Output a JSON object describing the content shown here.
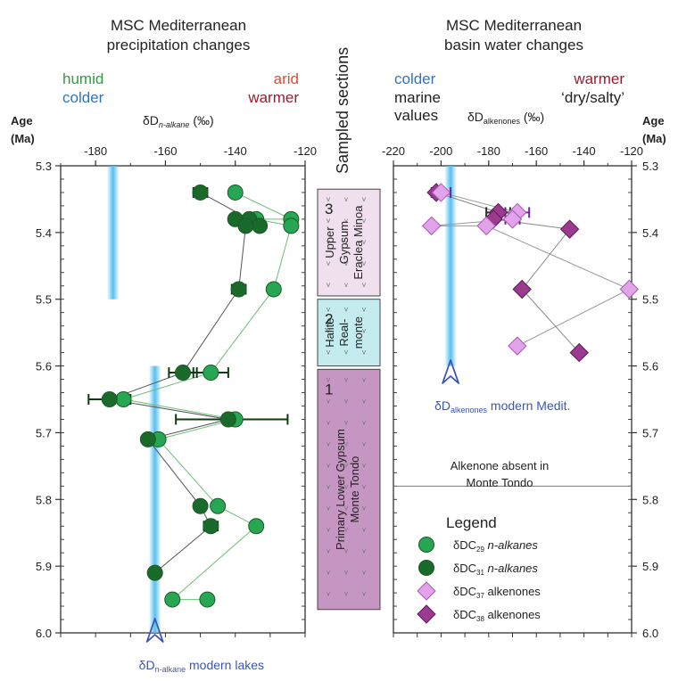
{
  "colors": {
    "humid": "#2e9e3e",
    "cold": "#2f73c4",
    "warm": "#9b1c2c",
    "arid": "#e8492e",
    "dc29": "#27a653",
    "dc31": "#1a6a2c",
    "c37": "#e2a3ea",
    "c38": "#9b3a8f",
    "errorbar_dc31": "#0f3a12",
    "errorbar_c37": "#7b1e9e",
    "band": "#55bff0",
    "arrow": "#3a57b8",
    "unit3_fill": "#f0e0ee",
    "unit2_fill": "#c4ecee",
    "unit1_fill": "#c596c2"
  },
  "left_panel": {
    "title_line1": "MSC Mediterranean",
    "title_line2": "precipitation changes",
    "humid": "humid",
    "colder": "colder",
    "arid": "arid",
    "warmer": "warmer",
    "axis_main": "δD",
    "axis_sub": "n-alkane",
    "axis_unit": " (‰)",
    "age_label": "Age",
    "age_unit": "(Ma)",
    "arrow_main": "δD",
    "arrow_sub": "n-alkane",
    "arrow_rest": " modern lakes"
  },
  "center": {
    "title": "Sampled sections",
    "unit3_number": "3",
    "unit3_label_lines": [
      "Upper",
      "Gypsum",
      "Eraclea Minoa"
    ],
    "unit2_number": "2",
    "unit2_label_lines": [
      "Halite",
      "Real-",
      "monte"
    ],
    "unit1_number": "1",
    "unit1_label_lines": [
      "Primary Lower Gypsum",
      "Monte Tondo"
    ]
  },
  "right_panel": {
    "title_line1": "MSC Mediterranean",
    "title_line2": "basin water changes",
    "colder": "colder",
    "marine_line1": "marine",
    "marine_line2": "values",
    "warmer": "warmer",
    "dry_salty": "‘dry/salty’",
    "axis_main": "δD",
    "axis_sub": "alkenones",
    "axis_unit": " (‰)",
    "age_label": "Age",
    "age_unit": "(Ma)",
    "arrow_main": "δD",
    "arrow_sub": "alkenones",
    "arrow_rest": " modern Medit.",
    "note_line1": "Alkenone absent in",
    "note_line2": "Monte Tondo",
    "legend_title": "Legend",
    "legend_items": [
      {
        "pre": "δDC",
        "sub": "29",
        "post": " n-alkanes"
      },
      {
        "pre": "δDC",
        "sub": "31",
        "post": " n-alkanes"
      },
      {
        "pre": "δDC",
        "sub": "37",
        "post": " alkenones"
      },
      {
        "pre": "δDC",
        "sub": "38",
        "post": " alkenones"
      }
    ]
  },
  "chart_data": [
    {
      "type": "scatter",
      "title": "MSC Mediterranean precipitation changes",
      "xlabel": "δD n-alkane (‰)",
      "ylabel": "Age (Ma)",
      "xlim": [
        -190,
        -120
      ],
      "ylim": [
        5.3,
        6.0
      ],
      "y_inverted": true,
      "x_ticks": [
        -180,
        -160,
        -140,
        -120
      ],
      "y_ticks": [
        5.3,
        5.4,
        5.5,
        5.6,
        5.7,
        5.8,
        5.9,
        6.0
      ],
      "reference_band": {
        "x": -175,
        "y_range": [
          5.3,
          5.5
        ]
      },
      "reference_band_modern": {
        "x": -163,
        "y_range": [
          5.6,
          6.0
        ],
        "label": "δD n-alkane modern lakes"
      },
      "series": [
        {
          "name": "δDC29 n-alkanes",
          "points": [
            {
              "x": -140,
              "y": 5.34
            },
            {
              "x": -124,
              "y": 5.38
            },
            {
              "x": -124,
              "y": 5.39
            },
            {
              "x": -134,
              "y": 5.38
            },
            {
              "x": -129,
              "y": 5.485
            },
            {
              "x": -147,
              "y": 5.61
            },
            {
              "x": -172,
              "y": 5.65
            },
            {
              "x": -140,
              "y": 5.68
            },
            {
              "x": -162,
              "y": 5.71
            },
            {
              "x": -145,
              "y": 5.81
            },
            {
              "x": -134,
              "y": 5.84
            },
            {
              "x": -158,
              "y": 5.95
            },
            {
              "x": -148,
              "y": 5.95
            }
          ],
          "errors": [
            {
              "y": 5.61,
              "x_low": -152,
              "x_high": -142
            }
          ]
        },
        {
          "name": "δDC31 n-alkanes",
          "points": [
            {
              "x": -150,
              "y": 5.34
            },
            {
              "x": -136,
              "y": 5.38
            },
            {
              "x": -140,
              "y": 5.38
            },
            {
              "x": -133,
              "y": 5.39
            },
            {
              "x": -137,
              "y": 5.39
            },
            {
              "x": -139,
              "y": 5.485
            },
            {
              "x": -155,
              "y": 5.61
            },
            {
              "x": -176,
              "y": 5.65
            },
            {
              "x": -142,
              "y": 5.68
            },
            {
              "x": -165,
              "y": 5.71
            },
            {
              "x": -150,
              "y": 5.81
            },
            {
              "x": -147,
              "y": 5.84
            },
            {
              "x": -163,
              "y": 5.91
            }
          ],
          "errors": [
            {
              "y": 5.65,
              "x_low": -182,
              "x_high": -170
            },
            {
              "y": 5.68,
              "x_low": -157,
              "x_high": -125
            },
            {
              "y": 5.61,
              "x_low": -159,
              "x_high": -151
            },
            {
              "y": 5.84,
              "x_low": -149,
              "x_high": -145
            },
            {
              "y": 5.485,
              "x_low": -141,
              "x_high": -137
            },
            {
              "y": 5.34,
              "x_low": -152,
              "x_high": -148
            }
          ]
        }
      ]
    },
    {
      "type": "scatter",
      "title": "MSC Mediterranean basin water changes",
      "xlabel": "δD alkenones (‰)",
      "ylabel": "Age (Ma)",
      "xlim": [
        -220,
        -120
      ],
      "ylim": [
        5.3,
        6.0
      ],
      "y_inverted": true,
      "x_ticks": [
        -220,
        -200,
        -180,
        -160,
        -140,
        -120
      ],
      "y_ticks": [
        5.3,
        5.4,
        5.5,
        5.6,
        5.7,
        5.8,
        5.9,
        6.0
      ],
      "reference_band": {
        "x": -196,
        "y_range": [
          5.3,
          5.6
        ],
        "label": "δD alkenones modern Medit."
      },
      "series": [
        {
          "name": "δDC37 alkenones",
          "points": [
            {
              "x": -200,
              "y": 5.34
            },
            {
              "x": -168,
              "y": 5.37
            },
            {
              "x": -170,
              "y": 5.38
            },
            {
              "x": -204,
              "y": 5.39
            },
            {
              "x": -181,
              "y": 5.39
            },
            {
              "x": -121,
              "y": 5.485
            },
            {
              "x": -168,
              "y": 5.57
            }
          ],
          "errors": [
            {
              "y": 5.34,
              "x_low": -204,
              "x_high": -196
            },
            {
              "y": 5.37,
              "x_low": -173,
              "x_high": -163
            },
            {
              "y": 5.38,
              "x_low": -173,
              "x_high": -167
            }
          ]
        },
        {
          "name": "δDC38 alkenones",
          "points": [
            {
              "x": -202,
              "y": 5.34
            },
            {
              "x": -176,
              "y": 5.37
            },
            {
              "x": -178,
              "y": 5.38
            },
            {
              "x": -146,
              "y": 5.395
            },
            {
              "x": -166,
              "y": 5.485
            },
            {
              "x": -142,
              "y": 5.58
            }
          ],
          "errors": [
            {
              "y": 5.37,
              "x_low": -181,
              "x_high": -171
            }
          ]
        }
      ]
    }
  ]
}
